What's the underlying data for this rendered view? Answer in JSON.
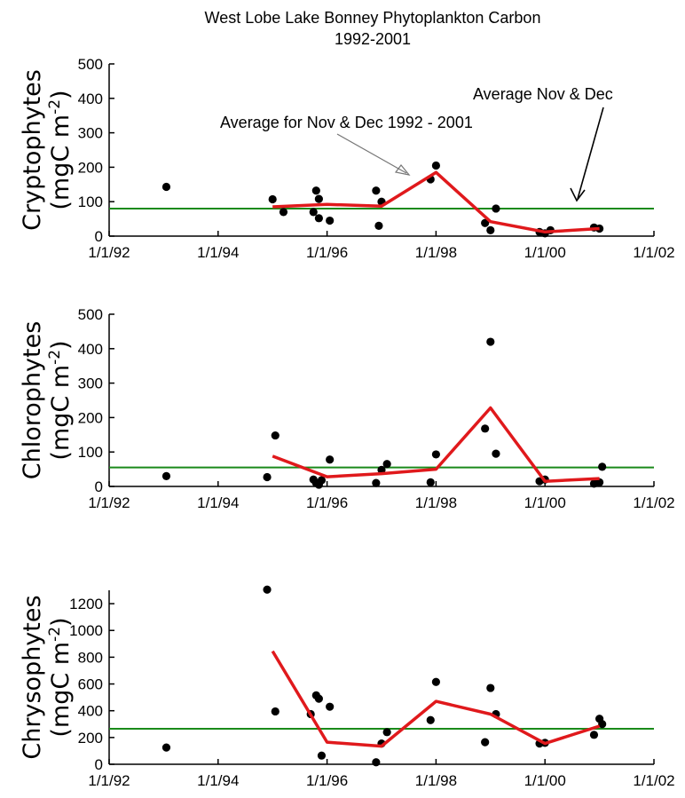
{
  "title": "West Lobe Lake Bonney Phytoplankton Carbon",
  "subtitle": "1992-2001",
  "colors": {
    "mean_line": "#e0191c",
    "reference_line": "#1a8a1a",
    "points": "#000000"
  },
  "x_ticks": [
    "1/1/92",
    "1/1/94",
    "1/1/96",
    "1/1/98",
    "1/1/00",
    "1/1/02"
  ],
  "annotations": {
    "average_range": "Average for Nov & Dec 1992 - 2001",
    "average_short": "Average Nov & Dec"
  },
  "chart_data": [
    {
      "type": "scatter",
      "ylabel_name": "Cryptophytes",
      "ylabel_unit": "(mgC m",
      "ylabel_exp": "-2",
      "ylabel_close": ")",
      "xlim": [
        1992.0,
        2002.0
      ],
      "ylim": [
        0,
        500
      ],
      "y_ticks": [
        "0",
        "100",
        "200",
        "300",
        "400",
        "500"
      ],
      "reference_line": 80,
      "points": [
        [
          1993.05,
          143
        ],
        [
          1995.0,
          107
        ],
        [
          1995.2,
          70
        ],
        [
          1995.8,
          132
        ],
        [
          1995.85,
          108
        ],
        [
          1995.75,
          70
        ],
        [
          1995.85,
          52
        ],
        [
          1996.05,
          45
        ],
        [
          1996.9,
          132
        ],
        [
          1996.95,
          30
        ],
        [
          1997.0,
          100
        ],
        [
          1997.9,
          165
        ],
        [
          1998.0,
          205
        ],
        [
          1998.9,
          38
        ],
        [
          1999.0,
          17
        ],
        [
          1999.1,
          80
        ],
        [
          1999.9,
          12
        ],
        [
          2000.0,
          8
        ],
        [
          2000.1,
          17
        ],
        [
          2000.9,
          25
        ],
        [
          2001.0,
          22
        ]
      ],
      "mean_line": [
        [
          1995.0,
          85
        ],
        [
          1996.0,
          92
        ],
        [
          1997.0,
          87
        ],
        [
          1998.0,
          185
        ],
        [
          1999.0,
          42
        ],
        [
          2000.0,
          12
        ],
        [
          2001.0,
          22
        ]
      ]
    },
    {
      "type": "scatter",
      "ylabel_name": "Chlorophytes",
      "ylabel_unit": "(mgC m",
      "ylabel_exp": "-2",
      "ylabel_close": ")",
      "xlim": [
        1992.0,
        2002.0
      ],
      "ylim": [
        0,
        500
      ],
      "y_ticks": [
        "0",
        "100",
        "200",
        "300",
        "400",
        "500"
      ],
      "reference_line": 55,
      "points": [
        [
          1993.05,
          30
        ],
        [
          1994.9,
          27
        ],
        [
          1995.05,
          148
        ],
        [
          1995.75,
          20
        ],
        [
          1995.8,
          10
        ],
        [
          1995.85,
          5
        ],
        [
          1995.9,
          18
        ],
        [
          1996.05,
          78
        ],
        [
          1996.9,
          10
        ],
        [
          1997.0,
          48
        ],
        [
          1997.1,
          65
        ],
        [
          1997.9,
          12
        ],
        [
          1998.0,
          93
        ],
        [
          1998.9,
          168
        ],
        [
          1999.0,
          420
        ],
        [
          1999.1,
          95
        ],
        [
          1999.9,
          15
        ],
        [
          2000.0,
          20
        ],
        [
          2000.9,
          8
        ],
        [
          2001.0,
          12
        ],
        [
          2001.05,
          57
        ]
      ],
      "mean_line": [
        [
          1995.0,
          88
        ],
        [
          1996.0,
          28
        ],
        [
          1997.0,
          37
        ],
        [
          1998.0,
          50
        ],
        [
          1999.0,
          228
        ],
        [
          2000.0,
          15
        ],
        [
          2001.0,
          23
        ]
      ]
    },
    {
      "type": "scatter",
      "ylabel_name": "Chrysophytes",
      "ylabel_unit": "(mgC m",
      "ylabel_exp": "-2",
      "ylabel_close": ")",
      "xlim": [
        1992.0,
        2002.0
      ],
      "ylim": [
        0,
        1300
      ],
      "y_ticks": [
        "0",
        "200",
        "400",
        "600",
        "800",
        "1000",
        "1200"
      ],
      "reference_line": 265,
      "points": [
        [
          1993.05,
          125
        ],
        [
          1994.9,
          1305
        ],
        [
          1995.05,
          395
        ],
        [
          1995.7,
          375
        ],
        [
          1995.8,
          515
        ],
        [
          1995.85,
          490
        ],
        [
          1995.9,
          65
        ],
        [
          1996.05,
          430
        ],
        [
          1996.9,
          15
        ],
        [
          1997.0,
          155
        ],
        [
          1997.1,
          240
        ],
        [
          1997.9,
          330
        ],
        [
          1998.0,
          615
        ],
        [
          1998.9,
          165
        ],
        [
          1999.0,
          570
        ],
        [
          1999.1,
          375
        ],
        [
          1999.9,
          155
        ],
        [
          2000.0,
          160
        ],
        [
          2000.9,
          220
        ],
        [
          2001.0,
          340
        ],
        [
          2001.05,
          300
        ]
      ],
      "mean_line": [
        [
          1995.0,
          845
        ],
        [
          1996.0,
          165
        ],
        [
          1997.0,
          135
        ],
        [
          1998.0,
          470
        ],
        [
          1999.0,
          375
        ],
        [
          2000.0,
          155
        ],
        [
          2001.0,
          285
        ]
      ]
    }
  ]
}
